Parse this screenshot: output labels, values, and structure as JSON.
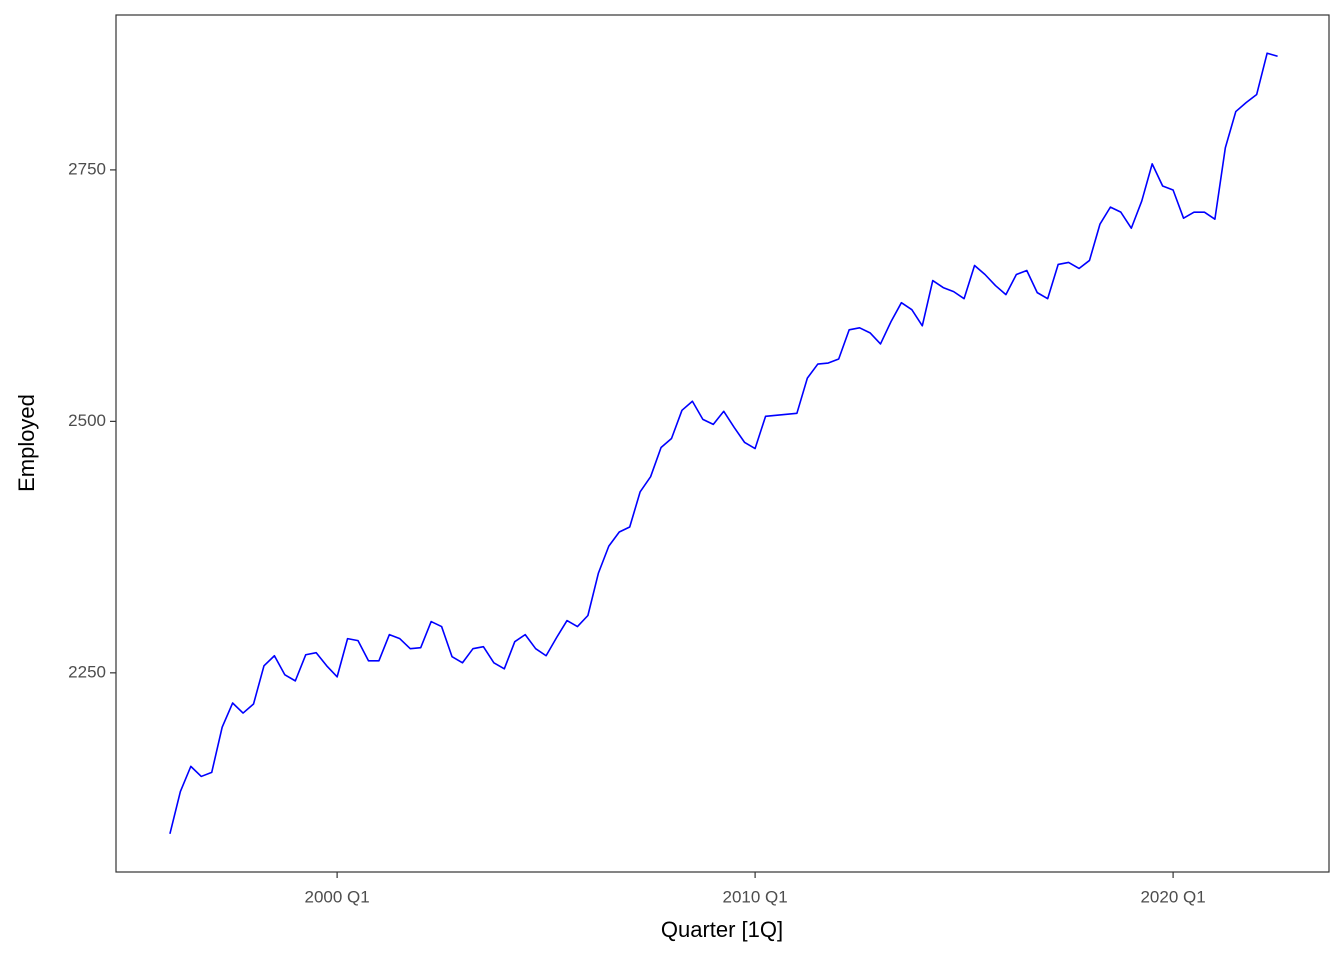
{
  "chart_data": {
    "type": "line",
    "xlabel": "Quarter [1Q]",
    "ylabel": "Employed",
    "color": "#0000ff",
    "x": [
      "1996 Q1",
      "1996 Q2",
      "1996 Q3",
      "1996 Q4",
      "1997 Q1",
      "1997 Q2",
      "1997 Q3",
      "1997 Q4",
      "1998 Q1",
      "1998 Q2",
      "1998 Q3",
      "1998 Q4",
      "1999 Q1",
      "1999 Q2",
      "1999 Q3",
      "1999 Q4",
      "2000 Q1",
      "2000 Q2",
      "2000 Q3",
      "2000 Q4",
      "2001 Q1",
      "2001 Q2",
      "2001 Q3",
      "2001 Q4",
      "2002 Q1",
      "2002 Q2",
      "2002 Q3",
      "2002 Q4",
      "2003 Q1",
      "2003 Q2",
      "2003 Q3",
      "2003 Q4",
      "2004 Q1",
      "2004 Q2",
      "2004 Q3",
      "2004 Q4",
      "2005 Q1",
      "2005 Q2",
      "2005 Q3",
      "2005 Q4",
      "2006 Q1",
      "2006 Q2",
      "2006 Q3",
      "2006 Q4",
      "2007 Q1",
      "2007 Q2",
      "2007 Q3",
      "2007 Q4",
      "2008 Q1",
      "2008 Q2",
      "2008 Q3",
      "2008 Q4",
      "2009 Q1",
      "2009 Q2",
      "2009 Q3",
      "2009 Q4",
      "2010 Q1",
      "2010 Q2",
      "2010 Q3",
      "2010 Q4",
      "2011 Q1",
      "2011 Q2",
      "2011 Q3",
      "2011 Q4",
      "2012 Q1",
      "2012 Q2",
      "2012 Q3",
      "2012 Q4",
      "2013 Q1",
      "2013 Q2",
      "2013 Q3",
      "2013 Q4",
      "2014 Q1",
      "2014 Q2",
      "2014 Q3",
      "2014 Q4",
      "2015 Q1",
      "2015 Q2",
      "2015 Q3",
      "2015 Q4",
      "2016 Q1",
      "2016 Q2",
      "2016 Q3",
      "2016 Q4",
      "2017 Q1",
      "2017 Q2",
      "2017 Q3",
      "2017 Q4",
      "2018 Q1",
      "2018 Q2",
      "2018 Q3",
      "2018 Q4",
      "2019 Q1",
      "2019 Q2",
      "2019 Q3",
      "2019 Q4",
      "2020 Q1",
      "2020 Q2",
      "2020 Q3",
      "2020 Q4",
      "2021 Q1",
      "2021 Q2",
      "2021 Q3",
      "2021 Q4",
      "2022 Q1",
      "2022 Q2",
      "2022 Q3"
    ],
    "values": [
      2090,
      2132,
      2157,
      2147,
      2151,
      2196,
      2220,
      2210,
      2219,
      2257,
      2267,
      2248,
      2242,
      2268,
      2270,
      2257,
      2246,
      2284,
      2282,
      2262,
      2262,
      2288,
      2284,
      2274,
      2275,
      2301,
      2296,
      2266,
      2260,
      2274,
      2276,
      2260,
      2254,
      2281,
      2288,
      2274,
      2267,
      2285,
      2302,
      2296,
      2307,
      2349,
      2376,
      2390,
      2395,
      2430,
      2445,
      2474,
      2483,
      2511,
      2520,
      2502,
      2497,
      2510,
      2494,
      2479,
      2473,
      2505,
      2506,
      2507,
      2508,
      2543,
      2557,
      2558,
      2562,
      2591,
      2593,
      2588,
      2577,
      2599,
      2618,
      2611,
      2595,
      2640,
      2633,
      2629,
      2622,
      2655,
      2646,
      2635,
      2626,
      2646,
      2650,
      2628,
      2622,
      2656,
      2658,
      2652,
      2660,
      2696,
      2713,
      2708,
      2692,
      2719,
      2756,
      2734,
      2730,
      2702,
      2708,
      2708,
      2701,
      2772,
      2808,
      2817,
      2825,
      2866,
      2863
    ],
    "xlim": [
      1994.71,
      2023.73
    ],
    "xticks": [
      {
        "value": 2000,
        "label": "2000 Q1"
      },
      {
        "value": 2010,
        "label": "2010 Q1"
      },
      {
        "value": 2020,
        "label": "2020 Q1"
      }
    ],
    "ylim": [
      2052,
      2904
    ],
    "yticks": [
      2250,
      2500,
      2750
    ],
    "grid": false
  }
}
